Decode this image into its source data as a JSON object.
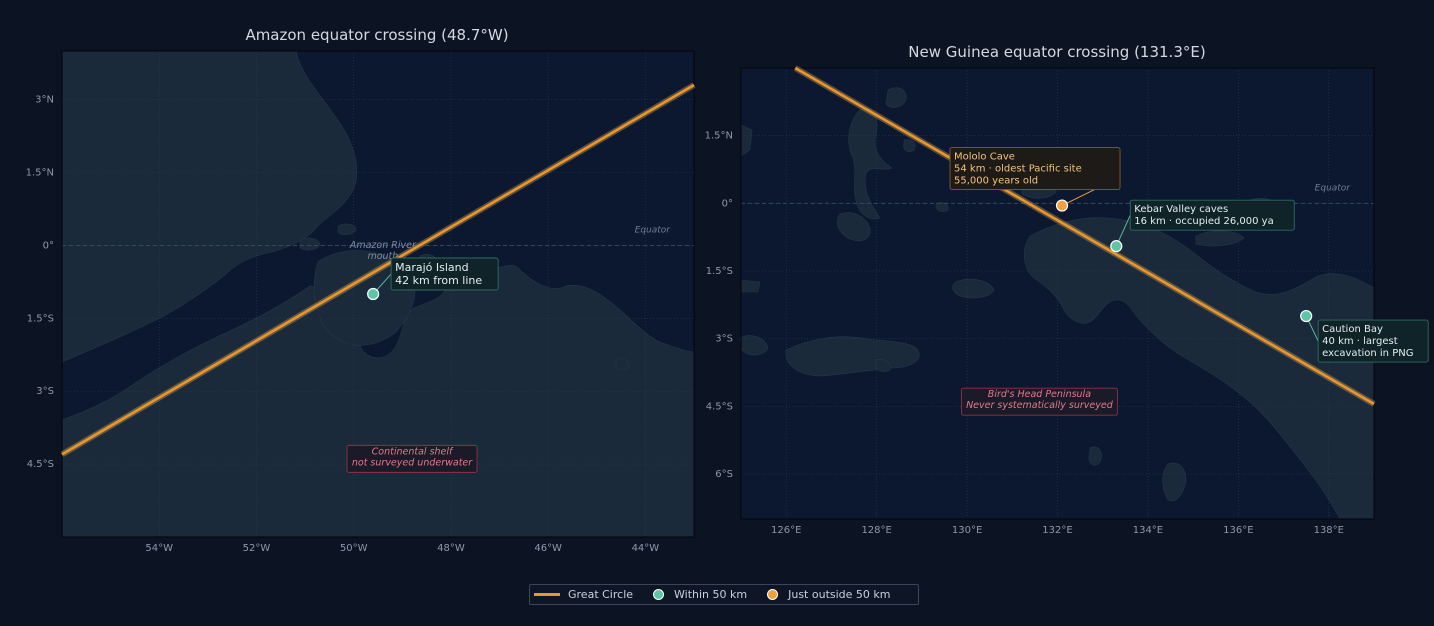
{
  "colors": {
    "background": "#0c1322",
    "ocean": "#0b1830",
    "land": "#1b2a3b",
    "great_circle": "#e8962e",
    "within": "#5ec6a6",
    "outside": "#f0a040",
    "unsurveyed": "#e07a8a"
  },
  "legend": {
    "great_circle": "Great Circle",
    "within": "Within 50 km",
    "outside": "Just outside 50 km"
  },
  "maps": [
    {
      "title": "Amazon equator crossing (48.7°W)",
      "xlim": [
        -56,
        -43
      ],
      "ylim": [
        -6,
        4
      ],
      "x_ticks": [
        {
          "value": -54,
          "label": "54°W"
        },
        {
          "value": -52,
          "label": "52°W"
        },
        {
          "value": -50,
          "label": "50°W"
        },
        {
          "value": -48,
          "label": "48°W"
        },
        {
          "value": -46,
          "label": "46°W"
        },
        {
          "value": -44,
          "label": "44°W"
        }
      ],
      "y_ticks": [
        {
          "value": 3,
          "label": "3°N"
        },
        {
          "value": 1.5,
          "label": "1.5°N"
        },
        {
          "value": 0,
          "label": "0°"
        },
        {
          "value": -1.5,
          "label": "1.5°S"
        },
        {
          "value": -3,
          "label": "3°S"
        },
        {
          "value": -4.5,
          "label": "4.5°S"
        }
      ],
      "equator_label": "Equator",
      "great_circle": [
        [
          -56,
          -4.3
        ],
        [
          -43,
          3.3
        ]
      ],
      "sites": [
        {
          "name": "Marajó Island",
          "detail": "42 km from line",
          "lon": -49.6,
          "lat": -1.0,
          "status": "within"
        }
      ],
      "region_labels": [
        {
          "text": [
            "Amazon River",
            "mouth"
          ],
          "lon": -49.4,
          "lat": -0.05
        }
      ],
      "unsurveyed_notes": [
        {
          "text": [
            "Continental shelf",
            "not surveyed underwater"
          ],
          "lon": -48.8,
          "lat": -4.3
        }
      ]
    },
    {
      "title": "New Guinea equator crossing (131.3°E)",
      "xlim": [
        125,
        139
      ],
      "ylim": [
        -7,
        3
      ],
      "x_ticks": [
        {
          "value": 126,
          "label": "126°E"
        },
        {
          "value": 128,
          "label": "128°E"
        },
        {
          "value": 130,
          "label": "130°E"
        },
        {
          "value": 132,
          "label": "132°E"
        },
        {
          "value": 134,
          "label": "134°E"
        },
        {
          "value": 136,
          "label": "136°E"
        },
        {
          "value": 138,
          "label": "138°E"
        }
      ],
      "y_ticks": [
        {
          "value": 1.5,
          "label": "1.5°N"
        },
        {
          "value": 0,
          "label": "0°"
        },
        {
          "value": -1.5,
          "label": "1.5°S"
        },
        {
          "value": -3,
          "label": "3°S"
        },
        {
          "value": -4.5,
          "label": "4.5°S"
        },
        {
          "value": -6,
          "label": "6°S"
        }
      ],
      "equator_label": "Equator",
      "great_circle": [
        [
          126.2,
          3.0
        ],
        [
          139,
          -4.45
        ]
      ],
      "sites": [
        {
          "name": "Mololo Cave",
          "detail": "54 km · oldest Pacific site",
          "detail2": "55,000 years old",
          "lon": 132.1,
          "lat": -0.05,
          "status": "outside"
        },
        {
          "name": "Kebar Valley caves",
          "detail": "16 km · occupied 26,000 ya",
          "lon": 133.3,
          "lat": -0.95,
          "status": "within"
        },
        {
          "name": "Caution Bay",
          "detail": "40 km · largest",
          "detail2": "excavation in PNG",
          "lon": 137.5,
          "lat": -2.5,
          "status": "within"
        }
      ],
      "region_labels": [],
      "unsurveyed_notes": [
        {
          "text": [
            "Bird's Head Peninsula",
            "Never systematically surveyed"
          ],
          "lon": 131.6,
          "lat": -4.3
        }
      ]
    }
  ]
}
